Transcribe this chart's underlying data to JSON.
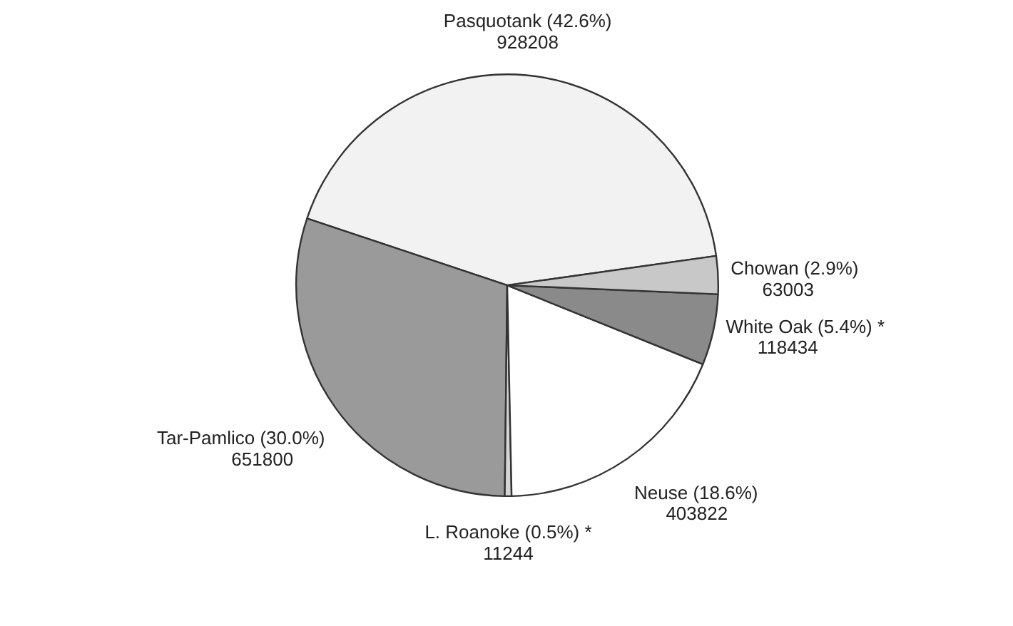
{
  "chart_data": {
    "type": "pie",
    "categories": [
      "Pasquotank (42.6%)",
      "Tar-Pamlico (30.0%)",
      "L. Roanoke (0.5%) *",
      "Neuse (18.6%)",
      "White Oak (5.4%) *",
      "Chowan (2.9%)"
    ],
    "values": [
      928208,
      651800,
      11244,
      403822,
      118434,
      63003
    ],
    "colors": [
      "#f2f2f2",
      "#9a9a9a",
      "#d4d4d4",
      "#ffffff",
      "#8a8a8a",
      "#c8c8c8"
    ],
    "data_labels": true
  }
}
